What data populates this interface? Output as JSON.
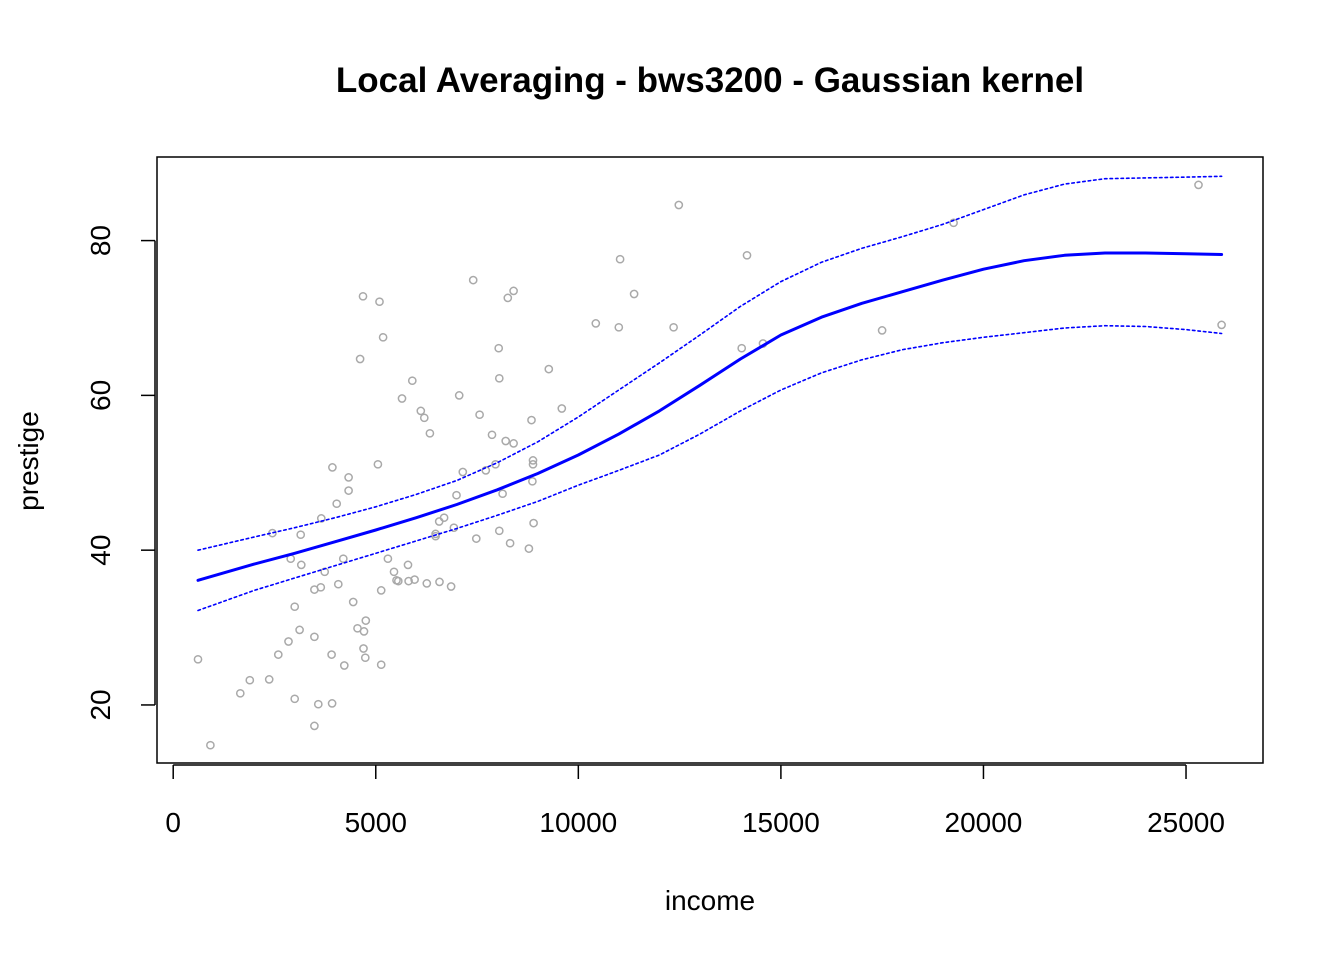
{
  "chart_data": {
    "type": "scatter",
    "title": "Local Averaging - bws3200 - Gaussian kernel",
    "xlabel": "income",
    "ylabel": "prestige",
    "xlim": [
      -400,
      26900
    ],
    "ylim": [
      12.5,
      90.8
    ],
    "xticks": [
      0,
      5000,
      10000,
      15000,
      20000,
      25000
    ],
    "xtick_labels": [
      "0",
      "5000",
      "10000",
      "15000",
      "20000",
      "25000"
    ],
    "yticks": [
      20,
      40,
      60,
      80
    ],
    "ytick_labels": [
      "20",
      "40",
      "60",
      "80"
    ],
    "grid": false,
    "colors": {
      "points": "#a9a9a9",
      "fit": "#0000ff",
      "band": "#0000ff",
      "frame": "#000000"
    },
    "points": [
      [
        611,
        25.9
      ],
      [
        918,
        14.8
      ],
      [
        1656,
        21.5
      ],
      [
        1890,
        23.2
      ],
      [
        2370,
        23.3
      ],
      [
        2448,
        42.2
      ],
      [
        2594,
        26.5
      ],
      [
        2847,
        28.2
      ],
      [
        2901,
        38.9
      ],
      [
        3000,
        20.8
      ],
      [
        3000,
        32.7
      ],
      [
        3120,
        29.7
      ],
      [
        3148,
        42.0
      ],
      [
        3161,
        38.1
      ],
      [
        3485,
        17.3
      ],
      [
        3485,
        28.8
      ],
      [
        3485,
        34.9
      ],
      [
        3582,
        20.1
      ],
      [
        3643,
        35.2
      ],
      [
        3656,
        44.1
      ],
      [
        3739,
        37.2
      ],
      [
        3910,
        26.5
      ],
      [
        3923,
        20.2
      ],
      [
        3930,
        50.7
      ],
      [
        4036,
        46.0
      ],
      [
        4075,
        35.6
      ],
      [
        4199,
        38.9
      ],
      [
        4224,
        25.1
      ],
      [
        4330,
        49.4
      ],
      [
        4330,
        47.7
      ],
      [
        4443,
        33.3
      ],
      [
        4549,
        29.9
      ],
      [
        4614,
        64.7
      ],
      [
        4686,
        72.8
      ],
      [
        4696,
        27.3
      ],
      [
        4710,
        29.5
      ],
      [
        4741,
        26.1
      ],
      [
        4753,
        30.9
      ],
      [
        5052,
        51.1
      ],
      [
        5092,
        72.1
      ],
      [
        5134,
        34.8
      ],
      [
        5134,
        25.2
      ],
      [
        5180,
        67.5
      ],
      [
        5299,
        38.9
      ],
      [
        5449,
        37.2
      ],
      [
        5511,
        36.1
      ],
      [
        5555,
        36.0
      ],
      [
        5648,
        59.6
      ],
      [
        5795,
        38.1
      ],
      [
        5811,
        36.0
      ],
      [
        5902,
        61.9
      ],
      [
        5959,
        36.2
      ],
      [
        6112,
        58.0
      ],
      [
        6197,
        57.1
      ],
      [
        6259,
        35.7
      ],
      [
        6336,
        55.1
      ],
      [
        6477,
        42.1
      ],
      [
        6477,
        41.8
      ],
      [
        6565,
        43.7
      ],
      [
        6573,
        35.9
      ],
      [
        6686,
        44.2
      ],
      [
        6860,
        35.3
      ],
      [
        6928,
        42.9
      ],
      [
        6992,
        47.1
      ],
      [
        7059,
        60.0
      ],
      [
        7147,
        50.1
      ],
      [
        7405,
        74.9
      ],
      [
        7482,
        41.5
      ],
      [
        7562,
        57.5
      ],
      [
        7716,
        50.3
      ],
      [
        7869,
        54.9
      ],
      [
        7956,
        51.1
      ],
      [
        8034,
        66.1
      ],
      [
        8049,
        62.2
      ],
      [
        8049,
        42.5
      ],
      [
        8131,
        47.3
      ],
      [
        8206,
        54.1
      ],
      [
        8258,
        72.6
      ],
      [
        8316,
        40.9
      ],
      [
        8403,
        73.5
      ],
      [
        8403,
        53.8
      ],
      [
        8780,
        40.2
      ],
      [
        8845,
        56.8
      ],
      [
        8865,
        48.9
      ],
      [
        8880,
        51.6
      ],
      [
        8880,
        51.1
      ],
      [
        8895,
        43.5
      ],
      [
        9271,
        63.4
      ],
      [
        9593,
        58.3
      ],
      [
        10432,
        69.3
      ],
      [
        11000,
        68.8
      ],
      [
        11030,
        77.6
      ],
      [
        11377,
        73.1
      ],
      [
        12351,
        68.8
      ],
      [
        12480,
        84.6
      ],
      [
        14032,
        66.1
      ],
      [
        14163,
        78.1
      ],
      [
        14558,
        66.7
      ],
      [
        17498,
        68.4
      ],
      [
        19263,
        82.3
      ],
      [
        25308,
        87.2
      ],
      [
        25879,
        69.1
      ]
    ],
    "series": [
      {
        "style": "solid",
        "x": [
          611,
          2000,
          3000,
          4000,
          5000,
          6000,
          7000,
          8000,
          9000,
          10000,
          11000,
          12000,
          13000,
          14000,
          15000,
          16000,
          17000,
          18000,
          19000,
          20000,
          21000,
          22000,
          23000,
          24000,
          25000,
          25879
        ],
        "y": [
          36.1,
          38.2,
          39.6,
          41.1,
          42.6,
          44.2,
          45.9,
          47.8,
          49.9,
          52.3,
          55.0,
          58.0,
          61.3,
          64.7,
          67.8,
          70.1,
          71.9,
          73.4,
          74.9,
          76.3,
          77.4,
          78.1,
          78.4,
          78.4,
          78.3,
          78.2
        ]
      },
      {
        "style": "dotted",
        "x": [
          611,
          2000,
          3000,
          4000,
          5000,
          6000,
          7000,
          8000,
          9000,
          10000,
          11000,
          12000,
          13000,
          14000,
          15000,
          16000,
          17000,
          18000,
          19000,
          20000,
          21000,
          22000,
          23000,
          24000,
          25000,
          25879
        ],
        "y": [
          40.0,
          41.7,
          42.9,
          44.2,
          45.6,
          47.2,
          49.0,
          51.3,
          54.0,
          57.2,
          60.7,
          64.2,
          67.8,
          71.5,
          74.7,
          77.2,
          79.0,
          80.5,
          82.1,
          84.0,
          85.9,
          87.3,
          88.0,
          88.1,
          88.2,
          88.3
        ]
      },
      {
        "style": "dotted",
        "x": [
          611,
          2000,
          3000,
          4000,
          5000,
          6000,
          7000,
          8000,
          9000,
          10000,
          11000,
          12000,
          13000,
          14000,
          15000,
          16000,
          17000,
          18000,
          19000,
          20000,
          21000,
          22000,
          23000,
          24000,
          25000,
          25879
        ],
        "y": [
          32.2,
          34.8,
          36.4,
          38.0,
          39.6,
          41.2,
          42.8,
          44.5,
          46.3,
          48.4,
          50.3,
          52.3,
          55.0,
          58.0,
          60.7,
          62.9,
          64.6,
          65.9,
          66.8,
          67.5,
          68.1,
          68.7,
          69.0,
          68.9,
          68.5,
          68.0
        ]
      }
    ]
  }
}
